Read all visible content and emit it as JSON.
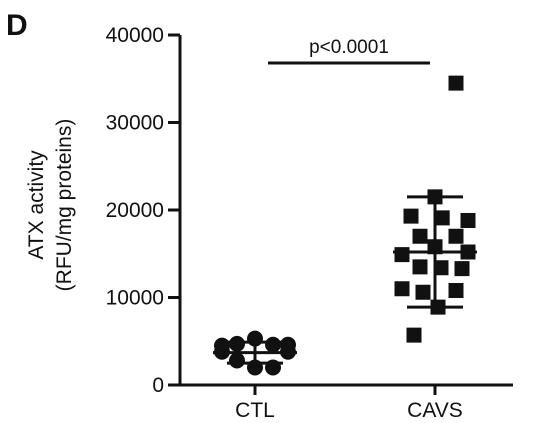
{
  "panel_label": "D",
  "chart_data": {
    "type": "scatter",
    "title": "",
    "ylabel_lines": [
      "ATX activity",
      "(RFU/mg proteins)"
    ],
    "xlabel": "",
    "categories": [
      "CTL",
      "CAVS"
    ],
    "ylim": [
      0,
      40000
    ],
    "yticks": [
      0,
      10000,
      20000,
      30000,
      40000
    ],
    "ytick_labels": [
      "0",
      "10000",
      "20000",
      "30000",
      "40000"
    ],
    "grid": false,
    "series": [
      {
        "category": "CTL",
        "marker": "circle",
        "points": [
          {
            "offset": -0.55,
            "y": 4500
          },
          {
            "offset": -0.3,
            "y": 4700
          },
          {
            "offset": 0.0,
            "y": 5300
          },
          {
            "offset": 0.3,
            "y": 4600
          },
          {
            "offset": 0.55,
            "y": 4600
          },
          {
            "offset": -0.55,
            "y": 3800
          },
          {
            "offset": 0.55,
            "y": 3800
          },
          {
            "offset": -0.3,
            "y": 2800
          },
          {
            "offset": 0.0,
            "y": 2000
          },
          {
            "offset": 0.3,
            "y": 2000
          }
        ],
        "mean": 3700,
        "sd_low": 2500,
        "sd_high": 4900
      },
      {
        "category": "CAVS",
        "marker": "square",
        "points": [
          {
            "offset": 0.35,
            "y": 34500
          },
          {
            "offset": 0.0,
            "y": 21500
          },
          {
            "offset": -0.4,
            "y": 19300
          },
          {
            "offset": 0.12,
            "y": 19100
          },
          {
            "offset": 0.55,
            "y": 18800
          },
          {
            "offset": -0.25,
            "y": 17000
          },
          {
            "offset": 0.35,
            "y": 17000
          },
          {
            "offset": 0.0,
            "y": 15800
          },
          {
            "offset": 0.55,
            "y": 15200
          },
          {
            "offset": -0.55,
            "y": 14900
          },
          {
            "offset": -0.25,
            "y": 13500
          },
          {
            "offset": 0.1,
            "y": 13400
          },
          {
            "offset": 0.45,
            "y": 13300
          },
          {
            "offset": -0.55,
            "y": 11000
          },
          {
            "offset": 0.35,
            "y": 10800
          },
          {
            "offset": -0.2,
            "y": 10600
          },
          {
            "offset": 0.05,
            "y": 8900
          },
          {
            "offset": -0.35,
            "y": 5700
          }
        ],
        "mean": 15200,
        "sd_low": 8900,
        "sd_high": 21500
      }
    ],
    "annotations": [
      {
        "text": "p<0.0001",
        "from": "CTL",
        "to": "CAVS",
        "y": 36800
      }
    ]
  }
}
